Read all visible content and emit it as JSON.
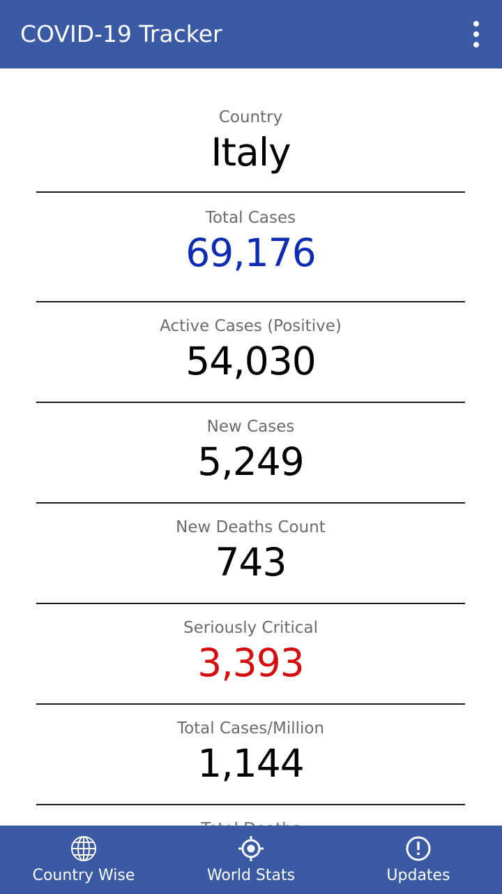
{
  "app_bar": {
    "title": "COVID-19 Tracker",
    "menu_icon": "more-vert-icon"
  },
  "stats": {
    "country": {
      "label": "Country",
      "value": "Italy"
    },
    "total_cases": {
      "label": "Total Cases",
      "value": "69,176",
      "color": "#0d2bb3"
    },
    "active_cases": {
      "label": "Active Cases (Positive)",
      "value": "54,030"
    },
    "new_cases": {
      "label": "New Cases",
      "value": "5,249"
    },
    "new_deaths": {
      "label": "New Deaths Count",
      "value": "743"
    },
    "serious_critical": {
      "label": "Seriously Critical",
      "value": "3,393",
      "color": "#d50d0d"
    },
    "cases_per_million": {
      "label": "Total Cases/Million",
      "value": "1,144"
    },
    "partial_next_label": "Total Deaths"
  },
  "bottom_nav": {
    "items": [
      {
        "label": "Country Wise",
        "icon": "globe-icon"
      },
      {
        "label": "World Stats",
        "icon": "gps-target-icon"
      },
      {
        "label": "Updates",
        "icon": "alert-circle-icon"
      }
    ],
    "background": "#3a5ba4"
  }
}
